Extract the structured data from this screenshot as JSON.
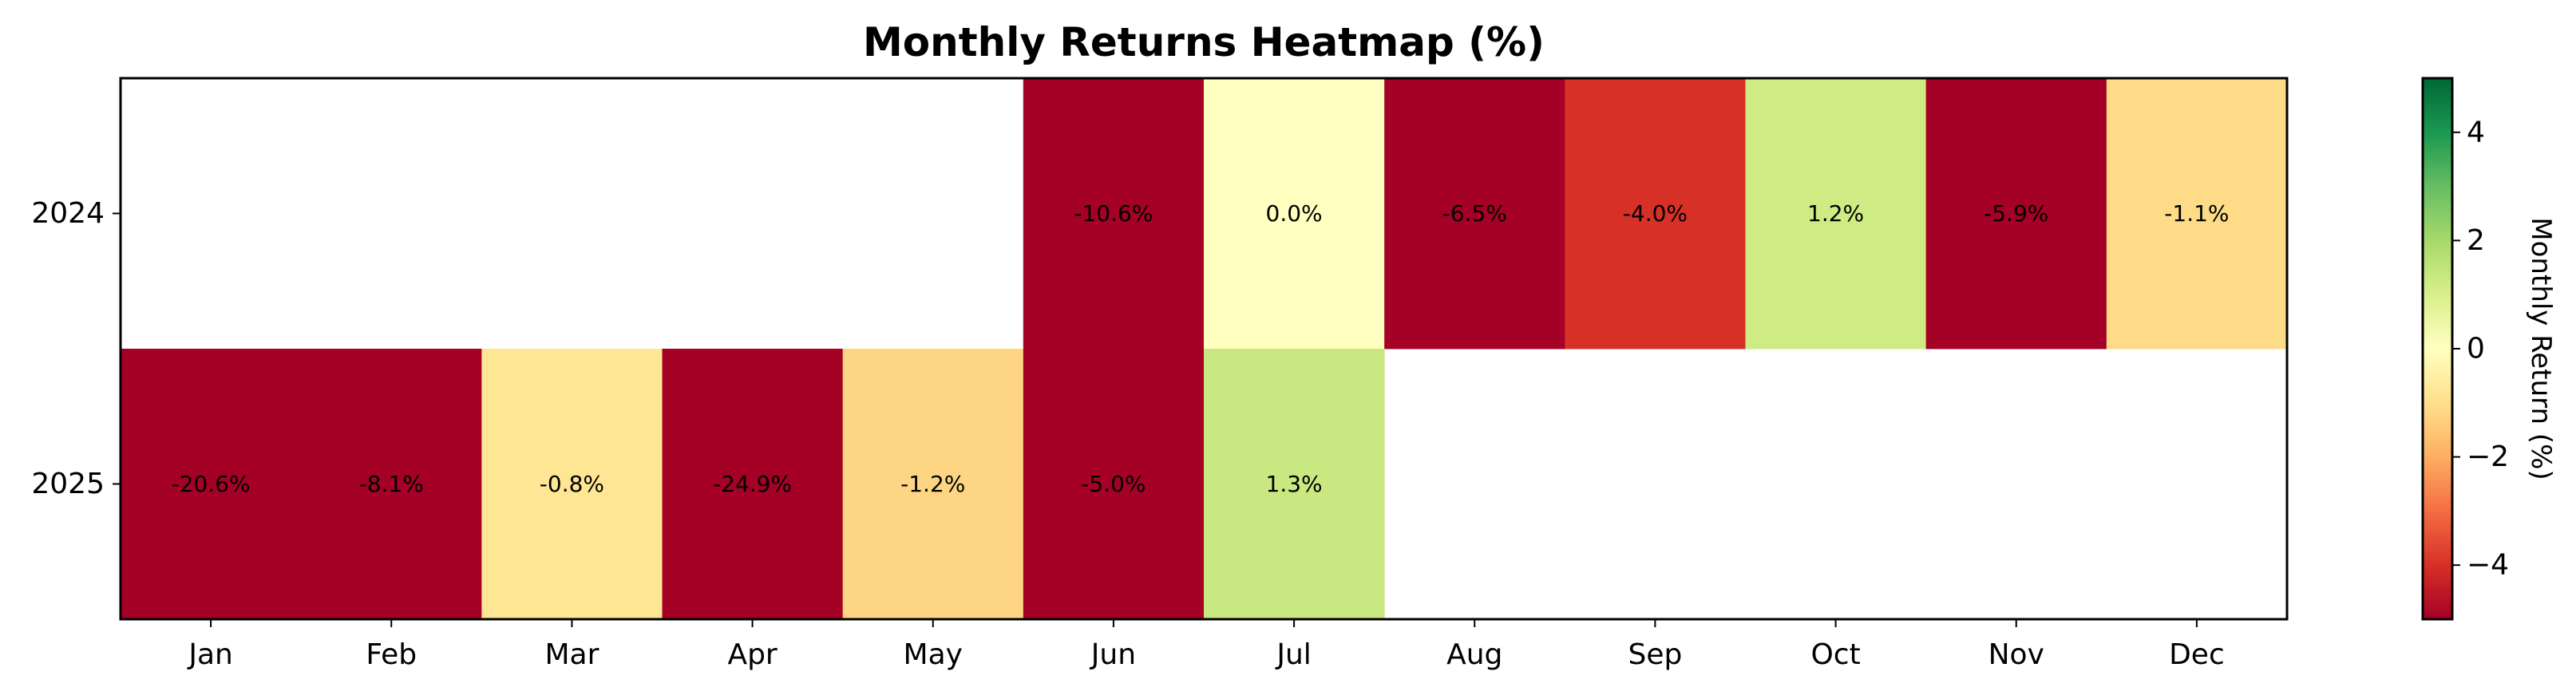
{
  "chart_data": {
    "type": "heatmap",
    "title": "Monthly Returns Heatmap (%)",
    "x_categories": [
      "Jan",
      "Feb",
      "Mar",
      "Apr",
      "May",
      "Jun",
      "Jul",
      "Aug",
      "Sep",
      "Oct",
      "Nov",
      "Dec"
    ],
    "y_categories": [
      "2024",
      "2025"
    ],
    "values": [
      [
        null,
        null,
        null,
        null,
        null,
        -10.6,
        0.0,
        -6.5,
        -4.0,
        1.2,
        -5.9,
        -1.1
      ],
      [
        -20.6,
        -8.1,
        -0.8,
        -24.9,
        -1.2,
        -5.0,
        1.3,
        null,
        null,
        null,
        null,
        null
      ]
    ],
    "cell_labels": [
      [
        "",
        "",
        "",
        "",
        "",
        "-10.6%",
        "0.0%",
        "-6.5%",
        "-4.0%",
        "1.2%",
        "-5.9%",
        "-1.1%"
      ],
      [
        "-20.6%",
        "-8.1%",
        "-0.8%",
        "-24.9%",
        "-1.2%",
        "-5.0%",
        "1.3%",
        "",
        "",
        "",
        "",
        ""
      ]
    ],
    "colormap": "RdYlGn",
    "vmin": -5,
    "vmax": 5,
    "colorbar": {
      "label": "Monthly Return (%)",
      "ticks": [
        4,
        2,
        0,
        -2,
        -4
      ],
      "tick_labels": [
        "4",
        "2",
        "0",
        "−2",
        "−4"
      ]
    }
  }
}
